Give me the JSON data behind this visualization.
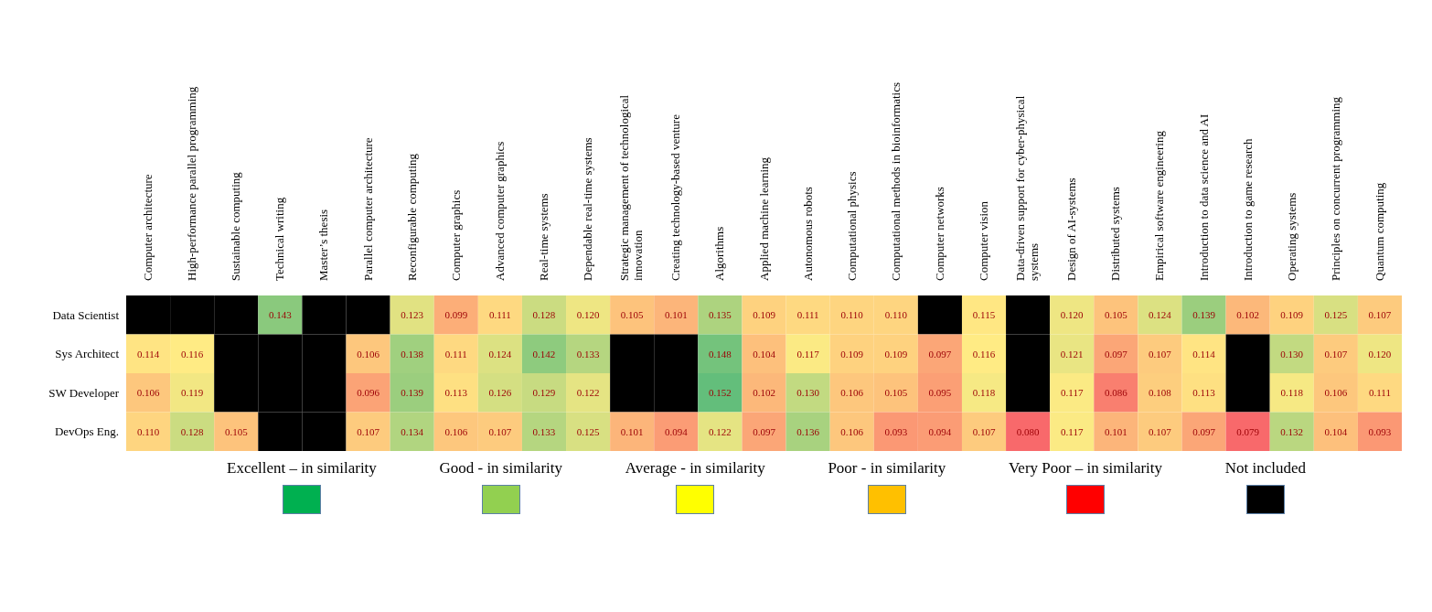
{
  "chart_data": {
    "type": "heatmap",
    "categories": [
      "Computer architecture",
      "High-performance parallel programming",
      "Sustainable computing",
      "Technical writing",
      "Master’s thesis",
      "Parallel computer architecture",
      "Reconfigurable computing",
      "Computer graphics",
      "Advanced computer graphics",
      "Real-time systems",
      "Dependable real-time systems",
      "Strategic management of technological innovation",
      "Creating technology-based venture",
      "Algorithms",
      "Applied machine learning",
      "Autonomous robots",
      "Computational physics",
      "Computational methods in bioinformatics",
      "Computer networks",
      "Computer vision",
      "Data-driven support for cyber-physical systems",
      "Design of AI-systems",
      "Distributed systems",
      "Empirical software engineering",
      "Introduction to data science and AI",
      "Introduction to game research",
      "Operating systems",
      "Principles on concurrent programming",
      "Quantum computing"
    ],
    "y_categories": [
      "Data Scientist",
      "Sys Architect",
      "SW Developer",
      "DevOps Eng."
    ],
    "cells": [
      [
        null,
        null,
        null,
        0.143,
        null,
        null,
        0.123,
        0.099,
        0.111,
        0.128,
        0.12,
        0.105,
        0.101,
        0.135,
        0.109,
        0.111,
        0.11,
        0.11,
        null,
        0.115,
        null,
        0.12,
        0.105,
        0.124,
        0.139,
        0.102,
        0.109,
        0.125,
        0.107
      ],
      [
        0.114,
        0.116,
        null,
        null,
        null,
        0.106,
        0.138,
        0.111,
        0.124,
        0.142,
        0.133,
        null,
        null,
        0.148,
        0.104,
        0.117,
        0.109,
        0.109,
        0.097,
        0.116,
        null,
        0.121,
        0.097,
        0.107,
        0.114,
        null,
        0.13,
        0.107,
        0.12
      ],
      [
        0.106,
        0.119,
        null,
        null,
        null,
        0.096,
        0.139,
        0.113,
        0.126,
        0.129,
        0.122,
        null,
        null,
        0.152,
        0.102,
        0.13,
        0.106,
        0.105,
        0.095,
        0.118,
        null,
        0.117,
        0.086,
        0.108,
        0.113,
        null,
        0.118,
        0.106,
        0.111
      ],
      [
        0.11,
        0.128,
        0.105,
        null,
        null,
        0.107,
        0.134,
        0.106,
        0.107,
        0.133,
        0.125,
        0.101,
        0.094,
        0.122,
        0.097,
        0.136,
        0.106,
        0.093,
        0.094,
        0.107,
        0.08,
        0.117,
        0.101,
        0.107,
        0.097,
        0.079,
        0.132,
        0.104,
        0.093
      ]
    ],
    "cell_labels": [
      [
        null,
        null,
        null,
        "0.143",
        null,
        null,
        "0.123",
        "0.099",
        "0.111",
        "0.128",
        "0.120",
        "0.105",
        "0.101",
        "0.135",
        "0.109",
        "0.111",
        "0.110",
        "0.110",
        null,
        "0.115",
        null,
        "0.120",
        "0.105",
        "0.124",
        "0.139",
        "0.102",
        "0.109",
        "0.125",
        "0.107"
      ],
      [
        "0.114",
        "0.116",
        null,
        null,
        null,
        "0.106",
        "0.138",
        "0.111",
        "0.124",
        "0.142",
        "0.133",
        null,
        null,
        "0.148",
        "0.104",
        "0.117",
        "0.109",
        "0.109",
        "0.097",
        "0.116",
        null,
        "0.121",
        "0.097",
        "0.107",
        "0.114",
        null,
        "0.130",
        "0.107",
        "0.120"
      ],
      [
        "0.106",
        "0.119",
        null,
        null,
        null,
        "0.096",
        "0.139",
        "0.113",
        "0.126",
        "0.129",
        "0.122",
        null,
        null,
        "0.152",
        "0.102",
        "0.130",
        "0.106",
        "0.105",
        "0.095",
        "0.118",
        null,
        "0.117",
        "0.086",
        "0.108",
        "0.113",
        null,
        "0.118",
        "0.106",
        "0.111"
      ],
      [
        "0.110",
        "0.128",
        "0.105",
        null,
        null,
        "0.107",
        "0.134",
        "0.106",
        "0.107",
        "0.133",
        "0.125",
        "0.101",
        "0.094",
        "0.122",
        "0.097",
        "0.136",
        "0.106",
        "0.093",
        "0.094",
        "0.107",
        "0.080",
        "0.117",
        "0.101",
        "0.107",
        "0.097",
        "0.079",
        "0.132",
        "0.104",
        "0.093"
      ]
    ],
    "annotations": [
      "Excellent – in similarity",
      "Good - in similarity",
      "Average - in similarity",
      "Poor - in similarity",
      "Very Poor – in similarity",
      "Not included"
    ]
  }
}
